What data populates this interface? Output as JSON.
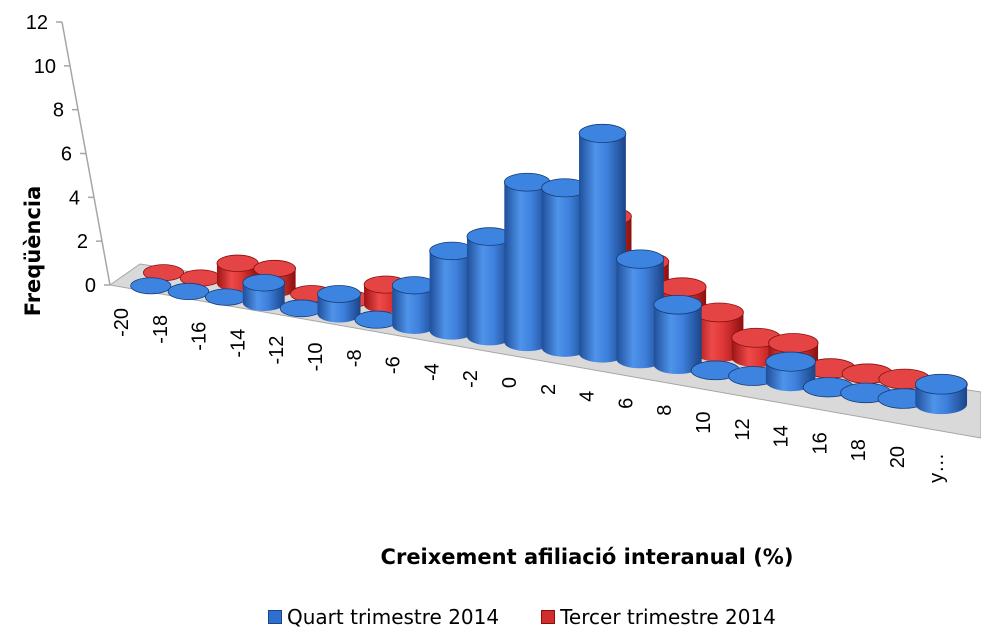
{
  "chart_data": {
    "type": "bar",
    "subtype": "3d-cylinder",
    "categories": [
      "-20",
      "-18",
      "-16",
      "-14",
      "-12",
      "-10",
      "-8",
      "-6",
      "-4",
      "-2",
      "0",
      "2",
      "4",
      "6",
      "8",
      "10",
      "12",
      "14",
      "16",
      "18",
      "20",
      "y…"
    ],
    "series": [
      {
        "name": "Quart trimestre 2014",
        "values": [
          0,
          0,
          0,
          1,
          0,
          1,
          0,
          2,
          4,
          5,
          8,
          8,
          11,
          5,
          3,
          0,
          0,
          1,
          0,
          0,
          0,
          1
        ],
        "color": "#2f6fcf"
      },
      {
        "name": "Tercer trimestre 2014",
        "values": [
          0,
          0,
          1,
          1,
          0,
          0,
          1,
          0,
          3,
          4,
          6,
          5,
          6,
          4,
          3,
          2,
          1,
          1,
          0,
          0,
          0,
          0
        ],
        "color": "#d22d2d"
      }
    ],
    "ylabel": "Freqüència",
    "xlabel": "Creixement afiliació interanual (%)",
    "ylim": [
      0,
      12
    ],
    "yticks": [
      "0",
      "2",
      "4",
      "6",
      "8",
      "10",
      "12"
    ],
    "legend_position": "bottom"
  }
}
